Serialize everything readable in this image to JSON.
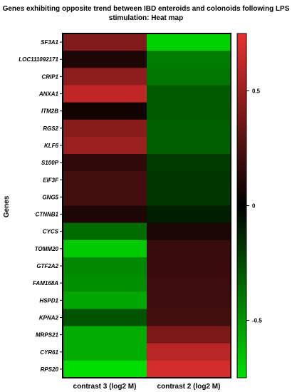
{
  "chart_data": {
    "type": "heatmap",
    "title_lines": [
      "Genes exhibiting opposite trend between IBD enteroids and colonoids following LPS",
      "stimulation: Heat map"
    ],
    "ylabel": "Genes",
    "xlabel": "",
    "columns": [
      "contrast 3 (log2 M)",
      "contrast 2 (log2 M)"
    ],
    "rows": [
      "SF3A1",
      "LOC111092171",
      "CRIP1",
      "ANXA1",
      "ITM2B",
      "RGS2",
      "KLF6",
      "S100P",
      "EIF3F",
      "GNG5",
      "CTNNB1",
      "CYCS",
      "TOMM20",
      "GTF2A2",
      "FAM168A",
      "HSPD1",
      "KPNA2",
      "MRPS21",
      "CYR61",
      "RPS20"
    ],
    "values": [
      [
        0.42,
        -0.7
      ],
      [
        0.1,
        -0.42
      ],
      [
        0.46,
        -0.4
      ],
      [
        0.62,
        -0.3
      ],
      [
        0.06,
        -0.3
      ],
      [
        0.44,
        -0.32
      ],
      [
        0.5,
        -0.32
      ],
      [
        0.15,
        -0.2
      ],
      [
        0.22,
        -0.18
      ],
      [
        0.22,
        -0.18
      ],
      [
        0.1,
        -0.1
      ],
      [
        -0.36,
        0.1
      ],
      [
        -0.68,
        0.18
      ],
      [
        -0.46,
        0.18
      ],
      [
        -0.48,
        0.2
      ],
      [
        -0.56,
        0.2
      ],
      [
        -0.28,
        0.22
      ],
      [
        -0.58,
        0.4
      ],
      [
        -0.58,
        0.6
      ],
      [
        -0.74,
        0.68
      ]
    ],
    "colorbar": {
      "min": -0.75,
      "max": 0.75,
      "ticks": [
        0.5,
        0,
        -0.5
      ],
      "tick_labels": [
        "0.5",
        "0",
        "-0.5"
      ],
      "low_color": "#00e000",
      "mid_color": "#000000",
      "high_color": "#e83030"
    }
  }
}
